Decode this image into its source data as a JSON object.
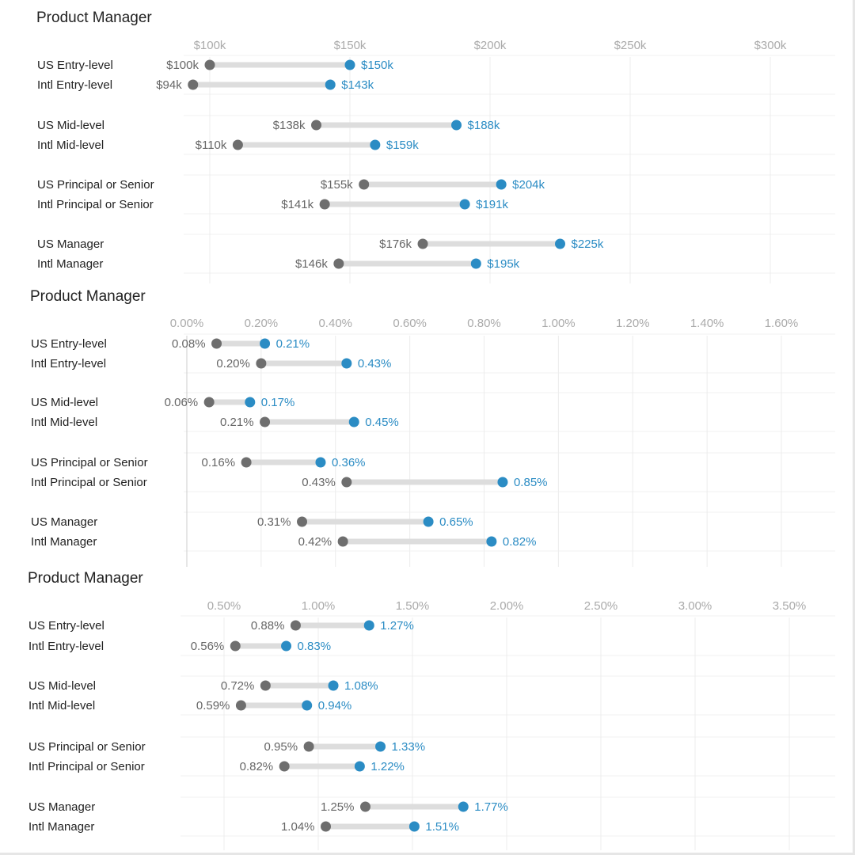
{
  "colors": {
    "low": "#6e6e6e",
    "high": "#2b8cc4",
    "range": "#dddddd",
    "grid": "#ececec"
  },
  "chart_data": [
    {
      "type": "dumbbell",
      "title": "Product Manager",
      "ticks": [
        100,
        150,
        200,
        250,
        300
      ],
      "tick_labels": [
        "$100k",
        "$150k",
        "$200k",
        "$250k",
        "$300k"
      ],
      "rows": [
        {
          "label": "US Entry-level",
          "low": 100,
          "high": 150,
          "low_label": "$100k",
          "high_label": "$150k"
        },
        {
          "label": "Intl Entry-level",
          "low": 94,
          "high": 143,
          "low_label": "$94k",
          "high_label": "$143k"
        },
        {
          "label": "US Mid-level",
          "low": 138,
          "high": 188,
          "low_label": "$138k",
          "high_label": "$188k"
        },
        {
          "label": "Intl Mid-level",
          "low": 110,
          "high": 159,
          "low_label": "$110k",
          "high_label": "$159k"
        },
        {
          "label": "US Principal or Senior",
          "low": 155,
          "high": 204,
          "low_label": "$155k",
          "high_label": "$204k"
        },
        {
          "label": "Intl Principal or Senior",
          "low": 141,
          "high": 191,
          "low_label": "$141k",
          "high_label": "$191k"
        },
        {
          "label": "US Manager",
          "low": 176,
          "high": 225,
          "low_label": "$176k",
          "high_label": "$225k"
        },
        {
          "label": "Intl Manager",
          "low": 146,
          "high": 195,
          "low_label": "$146k",
          "high_label": "$195k"
        }
      ]
    },
    {
      "type": "dumbbell",
      "title": "Product Manager",
      "ticks": [
        0,
        0.2,
        0.4,
        0.6,
        0.8,
        1.0,
        1.2,
        1.4,
        1.6
      ],
      "tick_labels": [
        "0.00%",
        "0.20%",
        "0.40%",
        "0.60%",
        "0.80%",
        "1.00%",
        "1.20%",
        "1.40%",
        "1.60%"
      ],
      "rows": [
        {
          "label": "US Entry-level",
          "low": 0.08,
          "high": 0.21,
          "low_label": "0.08%",
          "high_label": "0.21%"
        },
        {
          "label": "Intl Entry-level",
          "low": 0.2,
          "high": 0.43,
          "low_label": "0.20%",
          "high_label": "0.43%"
        },
        {
          "label": "US Mid-level",
          "low": 0.06,
          "high": 0.17,
          "low_label": "0.06%",
          "high_label": "0.17%"
        },
        {
          "label": "Intl Mid-level",
          "low": 0.21,
          "high": 0.45,
          "low_label": "0.21%",
          "high_label": "0.45%"
        },
        {
          "label": "US Principal or Senior",
          "low": 0.16,
          "high": 0.36,
          "low_label": "0.16%",
          "high_label": "0.36%"
        },
        {
          "label": "Intl Principal or Senior",
          "low": 0.43,
          "high": 0.85,
          "low_label": "0.43%",
          "high_label": "0.85%"
        },
        {
          "label": "US Manager",
          "low": 0.31,
          "high": 0.65,
          "low_label": "0.31%",
          "high_label": "0.65%"
        },
        {
          "label": "Intl Manager",
          "low": 0.42,
          "high": 0.82,
          "low_label": "0.42%",
          "high_label": "0.82%"
        }
      ]
    },
    {
      "type": "dumbbell",
      "title": "Product Manager",
      "ticks": [
        0.5,
        1.0,
        1.5,
        2.0,
        2.5,
        3.0,
        3.5
      ],
      "tick_labels": [
        "0.50%",
        "1.00%",
        "1.50%",
        "2.00%",
        "2.50%",
        "3.00%",
        "3.50%"
      ],
      "rows": [
        {
          "label": "US Entry-level",
          "low": 0.88,
          "high": 1.27,
          "low_label": "0.88%",
          "high_label": "1.27%"
        },
        {
          "label": "Intl Entry-level",
          "low": 0.56,
          "high": 0.83,
          "low_label": "0.56%",
          "high_label": "0.83%"
        },
        {
          "label": "US Mid-level",
          "low": 0.72,
          "high": 1.08,
          "low_label": "0.72%",
          "high_label": "1.08%"
        },
        {
          "label": "Intl Mid-level",
          "low": 0.59,
          "high": 0.94,
          "low_label": "0.59%",
          "high_label": "0.94%"
        },
        {
          "label": "US Principal or Senior",
          "low": 0.95,
          "high": 1.33,
          "low_label": "0.95%",
          "high_label": "1.33%"
        },
        {
          "label": "Intl Principal or Senior",
          "low": 0.82,
          "high": 1.22,
          "low_label": "0.82%",
          "high_label": "1.22%"
        },
        {
          "label": "US Manager",
          "low": 1.25,
          "high": 1.77,
          "low_label": "1.25%",
          "high_label": "1.77%"
        },
        {
          "label": "Intl Manager",
          "low": 1.04,
          "high": 1.51,
          "low_label": "1.04%",
          "high_label": "1.51%"
        }
      ]
    }
  ]
}
